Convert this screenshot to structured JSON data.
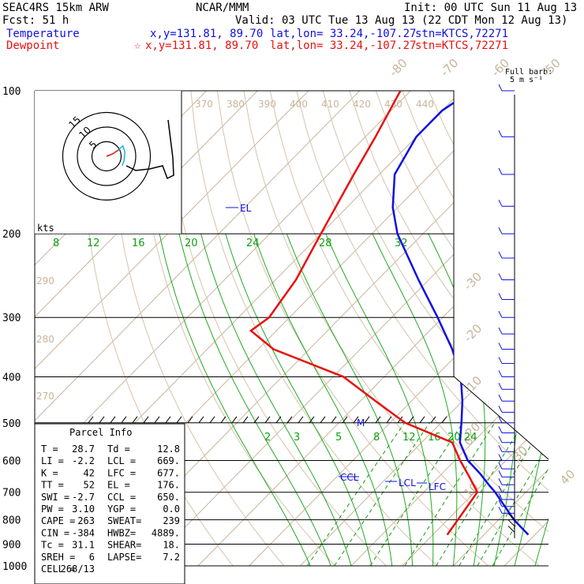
{
  "header": {
    "model": "SEAC4RS 15km ARW",
    "center": "NCAR/MMM",
    "init": "Init: 00 UTC Sun 11 Aug 13",
    "fcst": "Fcst:   51 h",
    "valid": "Valid: 03 UTC Tue 13 Aug 13 (22 CDT Mon 12 Aug 13)",
    "temp_label": "Temperature",
    "temp_xy": "x,y=131.81, 89.70",
    "temp_latlon": "lat,lon= 33.24,-107.27",
    "temp_stn": "stn=KTCS,72271",
    "dew_label": "Dewpoint",
    "dew_star": "☆",
    "dew_xy": "x,y=131.81, 89.70",
    "dew_latlon": "lat,lon= 33.24,-107.27",
    "dew_stn": "stn=KTCS,72271",
    "barb_key_1": "Full barb:",
    "barb_key_2": "5 m s⁻¹"
  },
  "colors": {
    "temperature": "#1010e0",
    "dewpoint": "#e81010",
    "isotherm": "#c8b49a",
    "dry_adiabat": "#d4c4ac",
    "mixing_ratio": "#10a010",
    "moist_adiabat": "#22aa22",
    "isobar": "#000000",
    "header_black": "#000000"
  },
  "params": {
    "title": "Parcel Info",
    "rows": [
      [
        "T   =",
        "28.7",
        "Td  =",
        "12.8"
      ],
      [
        "LI  =",
        "-2.2",
        "LCL =",
        "669."
      ],
      [
        "K   =",
        "42",
        "LFC =",
        "677."
      ],
      [
        "TT  =",
        "52",
        "EL  =",
        "176."
      ],
      [
        "SWI =",
        "-2.7",
        "CCL =",
        "650."
      ],
      [
        "PW  =",
        "3.10",
        "YGP =",
        "0.0"
      ],
      [
        "CAPE =",
        "263",
        "SWEAT=",
        "239"
      ],
      [
        "CIN  =",
        "-384",
        "HWBZ=",
        "4889."
      ],
      [
        "Tc  =",
        "31.1",
        "SHEAR=",
        "18."
      ],
      [
        "SREH =",
        "6",
        "LAPSE=",
        "7.2"
      ],
      [
        "CELL =",
        "268/13",
        "",
        ""
      ]
    ]
  },
  "hodograph": {
    "ring_labels": [
      "15",
      "10",
      "5"
    ],
    "units": "kts",
    "trace": [
      [
        0,
        0
      ],
      [
        2.1,
        0.8
      ],
      [
        4.1,
        2.2
      ],
      [
        5.6,
        3.6
      ],
      [
        6.3,
        1.4
      ],
      [
        6.0,
        -1.5
      ],
      [
        5.4,
        -3.2
      ]
    ]
  },
  "chart_data": {
    "type": "skew-t",
    "pressure_levels": [
      100,
      200,
      300,
      400,
      500,
      600,
      700,
      800,
      900,
      1000
    ],
    "pressure_range": [
      1000,
      100
    ],
    "isotherm_labels": [
      -80,
      -70,
      -60,
      -50,
      -40,
      -30,
      -20,
      -10,
      0,
      10,
      20,
      30,
      40
    ],
    "theta_labels_top": [
      370,
      380,
      390,
      400,
      410,
      420,
      430,
      440
    ],
    "theta_labels_left": [
      290,
      280,
      270
    ],
    "mixing_ratio_labels_upper": [
      8,
      12,
      16,
      20,
      24,
      28,
      32
    ],
    "mixing_ratio_labels_lower": [
      2,
      3,
      5,
      8,
      12,
      16,
      20,
      24
    ],
    "temperature_profile": [
      {
        "p": 860,
        "t": 28.7
      },
      {
        "p": 800,
        "t": 23
      },
      {
        "p": 700,
        "t": 14
      },
      {
        "p": 677,
        "t": 11.5
      },
      {
        "p": 640,
        "t": 7.5
      },
      {
        "p": 600,
        "t": 2.5
      },
      {
        "p": 550,
        "t": -2.5
      },
      {
        "p": 500,
        "t": -6
      },
      {
        "p": 450,
        "t": -10
      },
      {
        "p": 400,
        "t": -15
      },
      {
        "p": 350,
        "t": -22
      },
      {
        "p": 300,
        "t": -31
      },
      {
        "p": 250,
        "t": -42
      },
      {
        "p": 200,
        "t": -55
      },
      {
        "p": 176,
        "t": -61
      },
      {
        "p": 150,
        "t": -67
      },
      {
        "p": 125,
        "t": -70
      },
      {
        "p": 110,
        "t": -70
      },
      {
        "p": 100,
        "t": -68
      }
    ],
    "dewpoint_profile": [
      {
        "p": 860,
        "t": 12.8
      },
      {
        "p": 800,
        "t": 12
      },
      {
        "p": 700,
        "t": 10.5
      },
      {
        "p": 650,
        "t": 6
      },
      {
        "p": 600,
        "t": 1
      },
      {
        "p": 550,
        "t": -4
      },
      {
        "p": 500,
        "t": -17
      },
      {
        "p": 450,
        "t": -27
      },
      {
        "p": 400,
        "t": -38
      },
      {
        "p": 350,
        "t": -57
      },
      {
        "p": 320,
        "t": -65
      },
      {
        "p": 300,
        "t": -64
      },
      {
        "p": 250,
        "t": -66
      },
      {
        "p": 200,
        "t": -70
      },
      {
        "p": 150,
        "t": -75
      },
      {
        "p": 125,
        "t": -78
      },
      {
        "p": 100,
        "t": -82
      }
    ],
    "annotations": [
      {
        "text": "EL",
        "p": 176,
        "color": "temperature"
      },
      {
        "text": "M",
        "p": 500,
        "color": "temperature"
      },
      {
        "text": "CCL",
        "p": 650,
        "color": "temperature"
      },
      {
        "text": "LCL",
        "p": 669,
        "color": "temperature"
      },
      {
        "text": "LFC",
        "p": 677,
        "color": "temperature"
      }
    ],
    "wind_barbs": {
      "description": "barbs along right edge from 100 to ~900 hPa",
      "levels": [
        100,
        125,
        150,
        175,
        200,
        225,
        250,
        275,
        300,
        325,
        350,
        375,
        400,
        425,
        450,
        475,
        500,
        525,
        550,
        575,
        600,
        625,
        650,
        675,
        700,
        725,
        750,
        775,
        800,
        825,
        850
      ]
    }
  }
}
